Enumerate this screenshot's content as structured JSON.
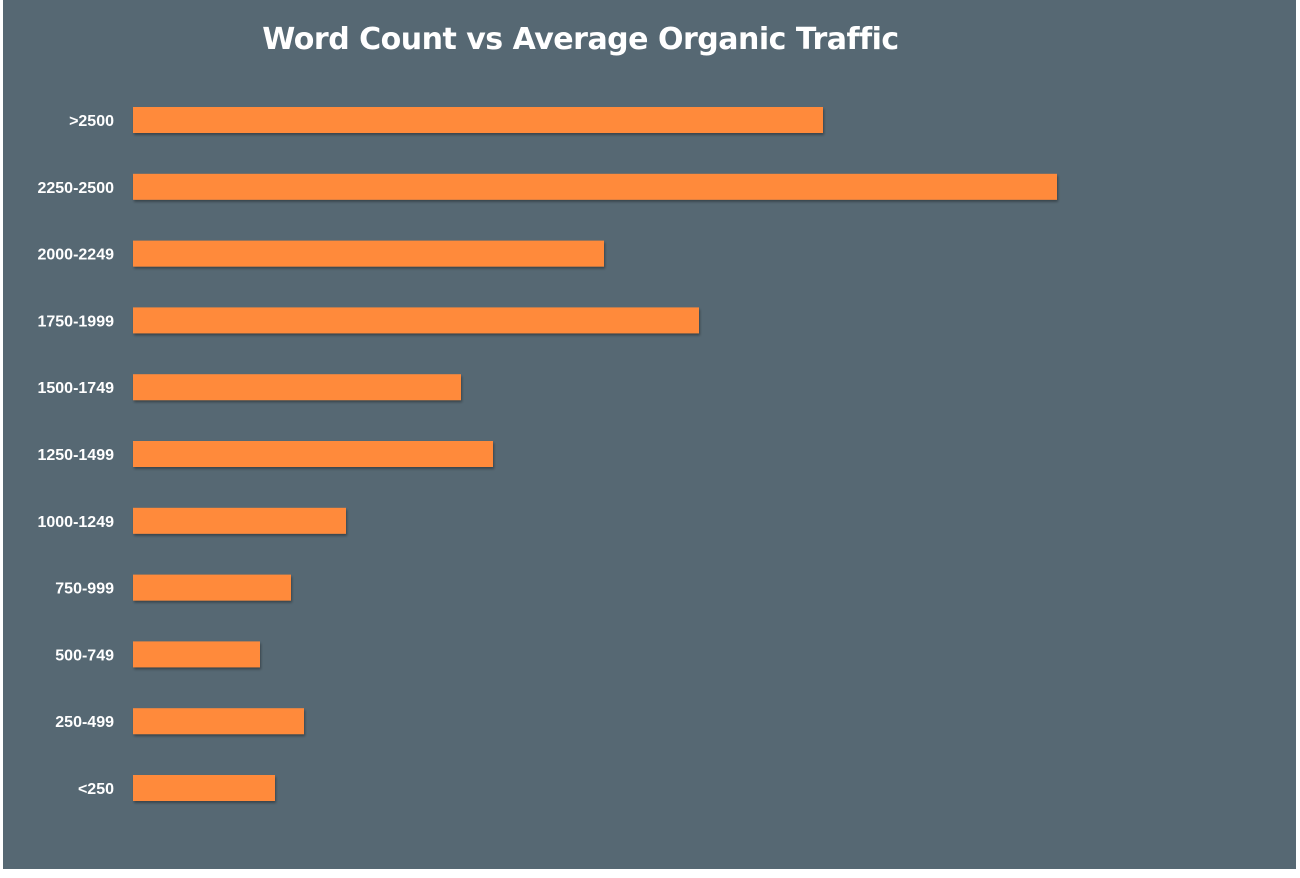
{
  "chart_data": {
    "type": "bar",
    "orientation": "horizontal",
    "title": "Word Count vs Average Organic Traffic",
    "xlabel": "",
    "ylabel": "",
    "categories": [
      ">2500",
      "2250-2500",
      "2000-2249",
      "1750-1999",
      "1500-1749",
      "1250-1499",
      "1000-1249",
      "750-999",
      "500-749",
      "250-499",
      "<250"
    ],
    "values": [
      690,
      924,
      471,
      566,
      328,
      360,
      213,
      158,
      127,
      171,
      142
    ],
    "xlim": [
      0,
      1000
    ],
    "grid": false,
    "legend": "none",
    "colors": {
      "background": "#566873",
      "bar": "#FF8A3A",
      "text": "#FFFFFF"
    }
  }
}
